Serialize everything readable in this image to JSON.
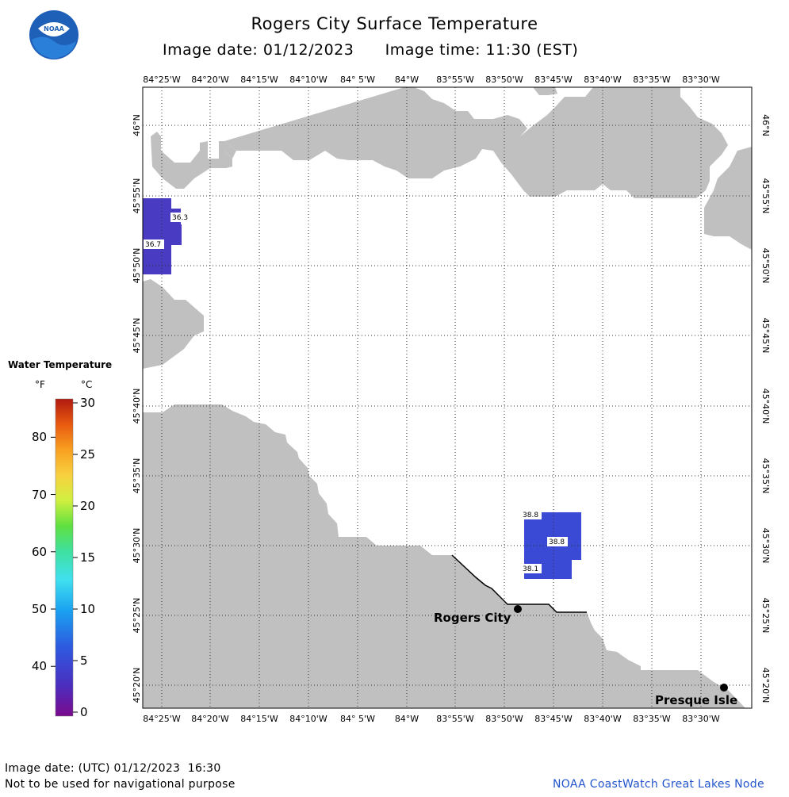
{
  "header": {
    "title": "Rogers City Surface Temperature",
    "image_date": "Image date: 01/12/2023",
    "image_time": "Image time: 11:30 (EST)"
  },
  "logo": {
    "text": "NOAA"
  },
  "map": {
    "lon_labels": [
      "84°25'W",
      "84°20'W",
      "84°15'W",
      "84°10'W",
      "84° 5'W",
      "84°W",
      "83°55'W",
      "83°50'W",
      "83°45'W",
      "83°40'W",
      "83°35'W",
      "83°30'W"
    ],
    "lat_labels": [
      "46°N",
      "45°55'N",
      "45°50'N",
      "45°45'N",
      "45°40'N",
      "45°35'N",
      "45°30'N",
      "45°25'N",
      "45°20'N"
    ],
    "places": [
      {
        "name": "Rogers City"
      },
      {
        "name": "Presque Isle"
      }
    ],
    "temperature_labels": [
      "36.3",
      "36.7",
      "38.8",
      "38.8",
      "38.1"
    ],
    "colors": {
      "land": "#c0c0c0",
      "water": "#ffffff",
      "grid": "#333333",
      "sst_cold_a": "#4a3cc2",
      "sst_cold_b": "#3a4ad4"
    }
  },
  "legend": {
    "title": "Water Temperature",
    "unit_f": "°F",
    "unit_c": "°C",
    "f_ticks": [
      "80",
      "70",
      "60",
      "50",
      "40"
    ],
    "c_ticks": [
      "30",
      "25",
      "20",
      "15",
      "10",
      "5",
      "0"
    ],
    "range_c": [
      0,
      30
    ]
  },
  "footer": {
    "utc_date": "Image date: (UTC) 01/12/2023  16:30",
    "disclaimer": "Not to be used for navigational purpose",
    "credit": "NOAA CoastWatch Great Lakes Node"
  }
}
